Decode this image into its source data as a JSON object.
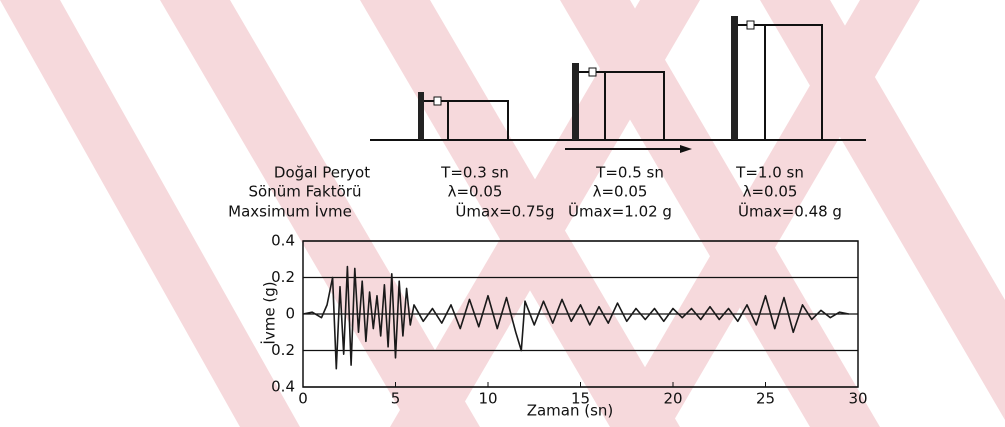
{
  "chart_data": {
    "type": "line",
    "x_label": "Zaman (sn)",
    "y_label": "İvme (g)",
    "annotation_rows": [
      [
        "Doğal Peryot",
        "T=0.3 sn",
        "T=0.5 sn",
        "T=1.0 sn"
      ],
      [
        "Sönüm Faktörü",
        "λ=0.05",
        "λ=0.05",
        "λ=0.05"
      ],
      [
        "Maxsimum İvme",
        "Ümax=0.75g",
        "Ümax=1.02 g",
        "Ümax=0.48 g"
      ]
    ],
    "x": [
      0,
      0.5,
      1,
      1.3,
      1.6,
      1.8,
      2,
      2.2,
      2.4,
      2.6,
      2.8,
      3,
      3.2,
      3.4,
      3.6,
      3.8,
      4,
      4.2,
      4.4,
      4.6,
      4.8,
      5,
      5.2,
      5.4,
      5.6,
      5.8,
      6,
      6.5,
      7,
      7.5,
      8,
      8.5,
      9,
      9.5,
      10,
      10.5,
      11,
      11.5,
      11.8,
      12,
      12.5,
      13,
      13.5,
      14,
      14.5,
      15,
      15.5,
      16,
      16.5,
      17,
      17.5,
      18,
      18.5,
      19,
      19.5,
      20,
      20.5,
      21,
      21.5,
      22,
      22.5,
      23,
      23.5,
      24,
      24.5,
      25,
      25.5,
      26,
      26.5,
      27,
      27.5,
      28,
      28.5,
      29,
      29.5
    ],
    "series": [
      {
        "color": "#1a1a1a",
        "values": [
          0,
          0.01,
          -0.02,
          0.05,
          0.2,
          -0.3,
          0.15,
          -0.22,
          0.26,
          -0.28,
          0.25,
          -0.1,
          0.18,
          -0.15,
          0.12,
          -0.08,
          0.1,
          -0.12,
          0.16,
          -0.18,
          0.22,
          -0.24,
          0.18,
          -0.12,
          0.14,
          -0.06,
          0.05,
          -0.04,
          0.03,
          -0.05,
          0.05,
          -0.08,
          0.08,
          -0.07,
          0.1,
          -0.08,
          0.09,
          -0.1,
          -0.2,
          0.07,
          -0.06,
          0.07,
          -0.05,
          0.08,
          -0.04,
          0.05,
          -0.06,
          0.04,
          -0.05,
          0.06,
          -0.04,
          0.03,
          -0.03,
          0.03,
          -0.04,
          0.03,
          -0.02,
          0.03,
          -0.03,
          0.04,
          -0.03,
          0.03,
          -0.04,
          0.05,
          -0.06,
          0.1,
          -0.08,
          0.09,
          -0.1,
          0.05,
          -0.03,
          0.02,
          -0.02,
          0.01,
          0
        ]
      }
    ],
    "xlim": [
      0,
      30
    ],
    "xticks": [
      0,
      5,
      10,
      15,
      20,
      25,
      30
    ],
    "ylim": [
      -0.4,
      0.4
    ],
    "yticks": [
      0.4,
      0.2,
      0,
      {
        "value": -0.2,
        "label": "0.2"
      },
      {
        "value": -0.4,
        "label": "0.4"
      }
    ],
    "grid": true
  }
}
